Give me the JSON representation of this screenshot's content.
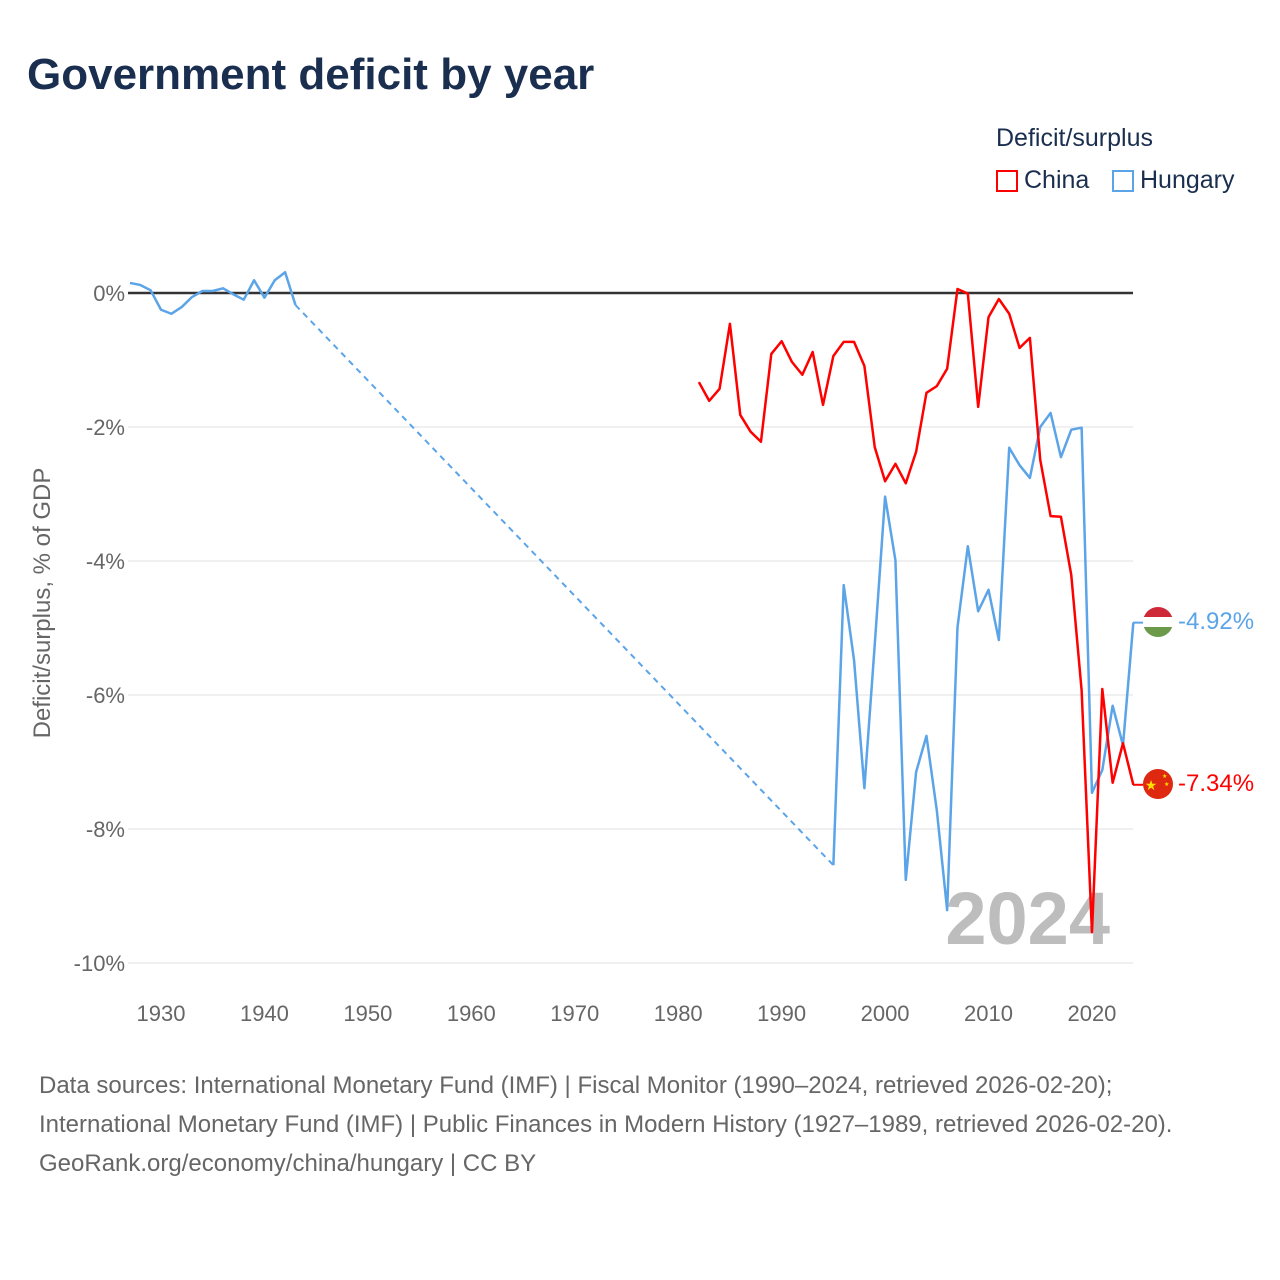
{
  "title": "Government deficit by year",
  "legend": {
    "title": "Deficit/surplus",
    "items": [
      {
        "name": "China",
        "color": "#ff0000"
      },
      {
        "name": "Hungary",
        "color": "#5ba4e8"
      }
    ]
  },
  "watermark_year": "2024",
  "footer": {
    "sources": "Data sources: International Monetary Fund (IMF) | Fiscal Monitor (1990–2024, retrieved 2026-02-20); International Monetary Fund (IMF) | Public Finances in Modern History (1927–1989, retrieved 2026-02-20).",
    "credit": "GeoRank.org/economy/china/hungary | CC BY"
  },
  "chart_data": {
    "type": "line",
    "title": "Government deficit by year",
    "xlabel": "",
    "ylabel": "Deficit/surplus, % of GDP",
    "xlim": [
      1927,
      2024
    ],
    "ylim": [
      -10,
      0.5
    ],
    "xticks": [
      "1930",
      "1940",
      "1950",
      "1960",
      "1970",
      "1980",
      "1990",
      "2000",
      "2010",
      "2020"
    ],
    "yticks": [
      {
        "v": 0,
        "label": "0%"
      },
      {
        "v": -2,
        "label": "-2%"
      },
      {
        "v": -4,
        "label": "-4%"
      },
      {
        "v": -6,
        "label": "-6%"
      },
      {
        "v": -8,
        "label": "-8%"
      },
      {
        "v": -10,
        "label": "-10%"
      }
    ],
    "end_labels": {
      "Hungary": "-4.92%",
      "China": "-7.34%"
    },
    "series": [
      {
        "name": "Hungary",
        "color": "#5ba4e8",
        "segments": [
          {
            "x": [
              1927,
              1928,
              1929,
              1930,
              1931,
              1932,
              1933,
              1934,
              1935,
              1936,
              1937,
              1938,
              1939,
              1940,
              1941,
              1942,
              1943
            ],
            "y": [
              0.15,
              0.12,
              0.04,
              -0.25,
              -0.31,
              -0.21,
              -0.06,
              0.03,
              0.03,
              0.07,
              -0.02,
              -0.1,
              0.19,
              -0.07,
              0.19,
              0.31,
              -0.18
            ]
          },
          {
            "x": [
              1995,
              1996,
              1997,
              1998,
              1999,
              2000,
              2001,
              2002,
              2003,
              2004,
              2005,
              2006,
              2007,
              2008,
              2009,
              2010,
              2011,
              2012,
              2013,
              2014,
              2015,
              2016,
              2017,
              2018,
              2019,
              2020,
              2021,
              2022,
              2023,
              2024
            ],
            "y": [
              -8.54,
              -4.36,
              -5.48,
              -7.39,
              -5.25,
              -3.04,
              -3.99,
              -8.76,
              -7.15,
              -6.61,
              -7.72,
              -9.21,
              -4.99,
              -3.78,
              -4.75,
              -4.43,
              -5.18,
              -2.31,
              -2.57,
              -2.76,
              -2.0,
              -1.79,
              -2.45,
              -2.04,
              -2.01,
              -7.46,
              -7.12,
              -6.16,
              -6.75,
              -4.92
            ]
          }
        ],
        "gap": {
          "from": [
            1943,
            -0.18
          ],
          "to": [
            1995,
            -8.54
          ]
        }
      },
      {
        "name": "China",
        "color": "#ff0000",
        "segments": [
          {
            "x": [
              1982,
              1983,
              1984,
              1985,
              1986,
              1987,
              1988,
              1989,
              1990,
              1991,
              1992,
              1993,
              1994,
              1995,
              1996,
              1997,
              1998,
              1999,
              2000,
              2001,
              2002,
              2003,
              2004,
              2005,
              2006,
              2007,
              2008,
              2009,
              2010,
              2011,
              2012,
              2013,
              2014,
              2015,
              2016,
              2017,
              2018,
              2019,
              2020,
              2021,
              2022,
              2023,
              2024
            ],
            "y": [
              -1.33,
              -1.61,
              -1.43,
              -0.46,
              -1.82,
              -2.07,
              -2.22,
              -0.91,
              -0.72,
              -1.03,
              -1.22,
              -0.88,
              -1.67,
              -0.94,
              -0.73,
              -0.73,
              -1.09,
              -2.3,
              -2.81,
              -2.55,
              -2.84,
              -2.37,
              -1.49,
              -1.39,
              -1.13,
              0.06,
              -0.01,
              -1.7,
              -0.36,
              -0.09,
              -0.31,
              -0.82,
              -0.67,
              -2.49,
              -3.33,
              -3.34,
              -4.21,
              -5.93,
              -9.54,
              -5.91,
              -7.31,
              -6.72,
              -7.34
            ]
          }
        ]
      }
    ]
  }
}
